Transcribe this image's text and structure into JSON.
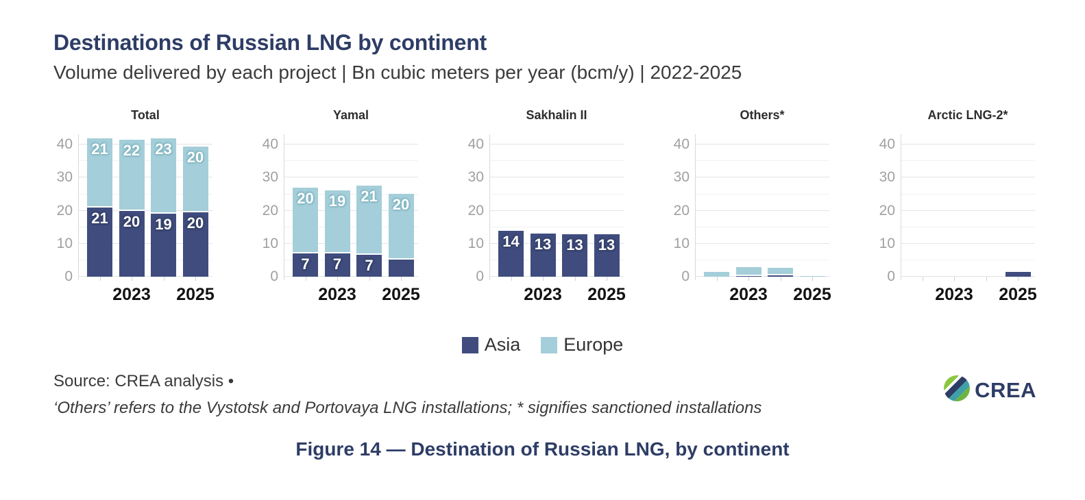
{
  "header": {
    "title": "Destinations of Russian LNG by continent",
    "subtitle": "Volume delivered by each project | Bn cubic meters per year (bcm/y) | 2022-2025"
  },
  "chart_data": {
    "type": "bar",
    "stacked": true,
    "unit": "bcm/y",
    "categories": [
      "2022",
      "2023",
      "2024",
      "2025"
    ],
    "category_axis_labels": [
      "",
      "2023",
      "",
      "2025"
    ],
    "ylim": [
      0,
      40
    ],
    "yticks": [
      0,
      10,
      20,
      30,
      40
    ],
    "grid": true,
    "legend_position": "bottom",
    "series_colors": {
      "Asia": "#3f4c7d",
      "Europe": "#a4ced9"
    },
    "panels": [
      {
        "title": "Total",
        "series": [
          {
            "name": "Asia",
            "values": [
              21,
              20,
              19,
              19.5
            ],
            "labels": [
              "21",
              "20",
              "19",
              "20"
            ]
          },
          {
            "name": "Europe",
            "values": [
              21,
              21.5,
              23,
              20
            ],
            "labels": [
              "21",
              "22",
              "23",
              "20"
            ]
          }
        ]
      },
      {
        "title": "Yamal",
        "series": [
          {
            "name": "Asia",
            "values": [
              7,
              7,
              6.6,
              5.2
            ],
            "labels": [
              "7",
              "7",
              "7",
              ""
            ]
          },
          {
            "name": "Europe",
            "values": [
              20,
              19.2,
              21,
              20
            ],
            "labels": [
              "20",
              "19",
              "21",
              "20"
            ]
          }
        ]
      },
      {
        "title": "Sakhalin II",
        "series": [
          {
            "name": "Asia",
            "values": [
              14,
              13,
              12.8,
              12.8
            ],
            "labels": [
              "14",
              "13",
              "13",
              "13"
            ]
          },
          {
            "name": "Europe",
            "values": [
              0,
              0,
              0,
              0
            ],
            "labels": [
              "",
              "",
              "",
              ""
            ]
          }
        ]
      },
      {
        "title": "Others*",
        "series": [
          {
            "name": "Asia",
            "values": [
              0,
              0.3,
              0.5,
              0
            ],
            "labels": [
              "",
              "",
              "",
              ""
            ]
          },
          {
            "name": "Europe",
            "values": [
              1.5,
              2.6,
              2.3,
              0.2
            ],
            "labels": [
              "",
              "",
              "",
              ""
            ]
          }
        ]
      },
      {
        "title": "Arctic LNG-2*",
        "series": [
          {
            "name": "Asia",
            "values": [
              0,
              0,
              0,
              1.5
            ],
            "labels": [
              "",
              "",
              "",
              ""
            ]
          },
          {
            "name": "Europe",
            "values": [
              0,
              0,
              0,
              0
            ],
            "labels": [
              "",
              "",
              "",
              ""
            ]
          }
        ]
      }
    ]
  },
  "legend": {
    "items": [
      {
        "label": "Asia",
        "color": "#3f4c7d"
      },
      {
        "label": "Europe",
        "color": "#a4ced9"
      }
    ]
  },
  "footer": {
    "source_line": "Source: CREA analysis •",
    "note_line": "‘Others’ refers to the Vystotsk and Portovaya LNG installations; * signifies sanctioned installations",
    "logo_text": "CREA"
  },
  "caption": "Figure 14 — Destination of Russian LNG, by continent"
}
